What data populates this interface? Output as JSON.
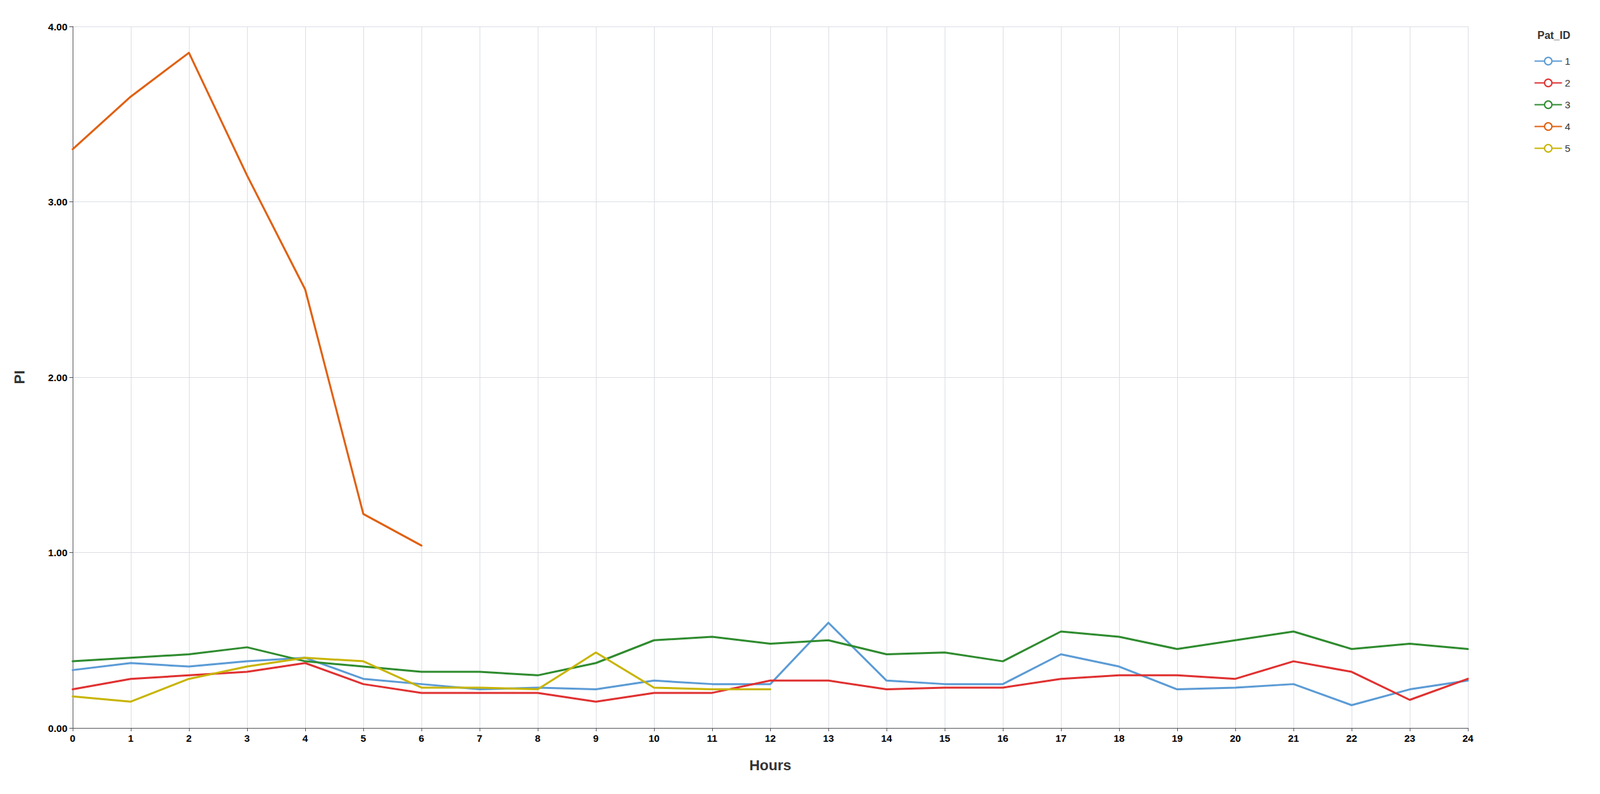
{
  "chart_data": {
    "type": "line",
    "xlabel": "Hours",
    "ylabel": "PI",
    "legend_title": "Pat_ID",
    "x": [
      0,
      1,
      2,
      3,
      4,
      5,
      6,
      7,
      8,
      9,
      10,
      11,
      12,
      13,
      14,
      15,
      16,
      17,
      18,
      19,
      20,
      21,
      22,
      23,
      24
    ],
    "series": [
      {
        "name": "1",
        "color": "#5B9BD5",
        "values": [
          0.33,
          0.37,
          0.35,
          0.38,
          0.4,
          0.28,
          0.25,
          0.22,
          0.23,
          0.22,
          0.27,
          0.25,
          0.25,
          0.6,
          0.27,
          0.25,
          0.25,
          0.42,
          0.35,
          0.22,
          0.23,
          0.25,
          0.13,
          0.22,
          0.27
        ]
      },
      {
        "name": "2",
        "color": "#E03030",
        "values": [
          0.22,
          0.28,
          0.3,
          0.32,
          0.37,
          0.25,
          0.2,
          0.2,
          0.2,
          0.15,
          0.2,
          0.2,
          0.27,
          0.27,
          0.22,
          0.23,
          0.23,
          0.28,
          0.3,
          0.3,
          0.28,
          0.38,
          0.32,
          0.16,
          0.28
        ]
      },
      {
        "name": "3",
        "color": "#2E8B2E",
        "values": [
          0.38,
          0.4,
          0.42,
          0.46,
          0.38,
          0.35,
          0.32,
          0.32,
          0.3,
          0.37,
          0.5,
          0.52,
          0.48,
          0.5,
          0.42,
          0.43,
          0.38,
          0.55,
          0.52,
          0.45,
          0.5,
          0.55,
          0.45,
          0.48,
          0.45
        ]
      },
      {
        "name": "4",
        "color": "#E06010",
        "values": [
          3.3,
          3.6,
          3.85,
          3.15,
          2.5,
          1.22,
          1.04,
          null,
          null,
          null,
          null,
          null,
          null,
          null,
          null,
          null,
          null,
          null,
          null,
          null,
          null,
          null,
          null,
          null,
          null
        ]
      },
      {
        "name": "5",
        "color": "#C8B400",
        "values": [
          0.18,
          0.15,
          0.28,
          0.35,
          0.4,
          0.38,
          0.23,
          0.23,
          0.22,
          0.43,
          0.23,
          0.22,
          0.22,
          null,
          null,
          null,
          null,
          null,
          null,
          null,
          null,
          null,
          null,
          null,
          null
        ]
      }
    ],
    "xlim": [
      0,
      24
    ],
    "xticks": [
      0,
      1,
      2,
      3,
      4,
      5,
      6,
      7,
      8,
      9,
      10,
      11,
      12,
      13,
      14,
      15,
      16,
      17,
      18,
      19,
      20,
      21,
      22,
      23,
      24
    ],
    "ylim": [
      0.0,
      4.0
    ],
    "yticks": [
      {
        "value": 0.0,
        "label": "0.00"
      },
      {
        "value": 1.0,
        "label": "1.00"
      },
      {
        "value": 2.0,
        "label": "2.00"
      },
      {
        "value": 3.0,
        "label": "3.00"
      },
      {
        "value": 4.0,
        "label": "4.00"
      }
    ],
    "grid": true,
    "legend": "upper right"
  }
}
